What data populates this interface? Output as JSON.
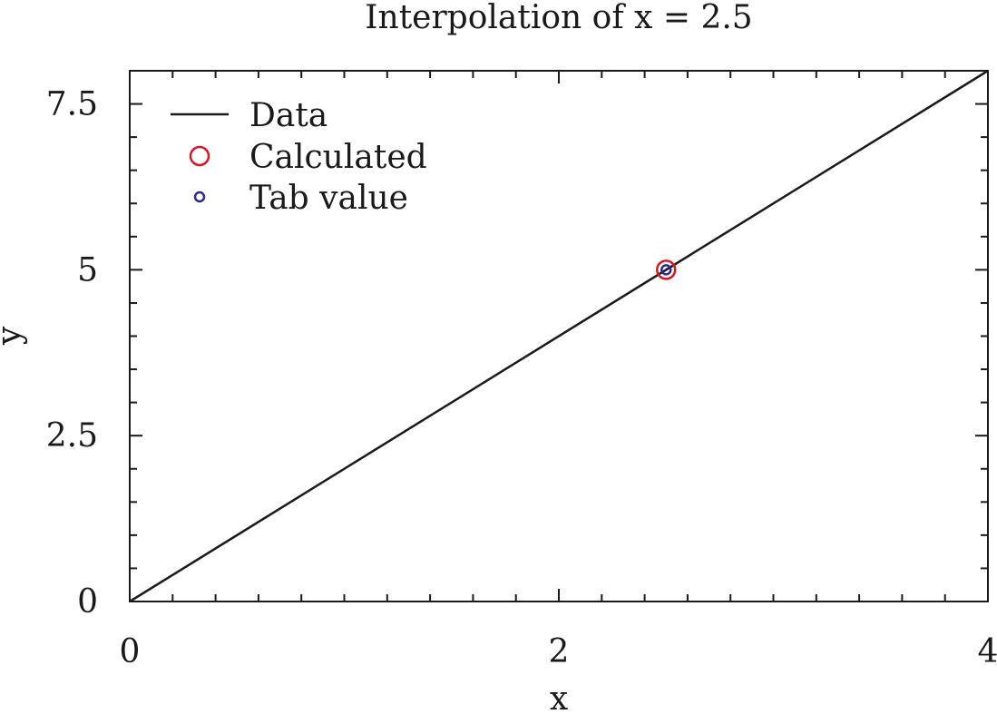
{
  "chart_data": {
    "type": "line",
    "title": "Interpolation of x = 2.5",
    "xlabel": "x",
    "ylabel": "y",
    "xlim": [
      0,
      4
    ],
    "ylim": [
      0,
      8
    ],
    "xticks": [
      0,
      2,
      4
    ],
    "xtick_labels": [
      "0",
      "2",
      "4"
    ],
    "yticks": [
      0,
      2.5,
      5,
      7.5
    ],
    "ytick_labels": [
      "0",
      "2.5",
      "5",
      "7.5"
    ],
    "grid": false,
    "legend_position": "top-left",
    "series": [
      {
        "name": "Data",
        "style": "line",
        "color": "#1a1a1a",
        "x": [
          0,
          4
        ],
        "y": [
          0,
          8
        ]
      },
      {
        "name": "Calculated",
        "style": "open-circle-large",
        "color": "#d7191c",
        "x": [
          2.5
        ],
        "y": [
          5
        ]
      },
      {
        "name": "Tab value",
        "style": "open-circle-small",
        "color": "#2b2b8f",
        "x": [
          2.5
        ],
        "y": [
          5
        ]
      }
    ]
  }
}
